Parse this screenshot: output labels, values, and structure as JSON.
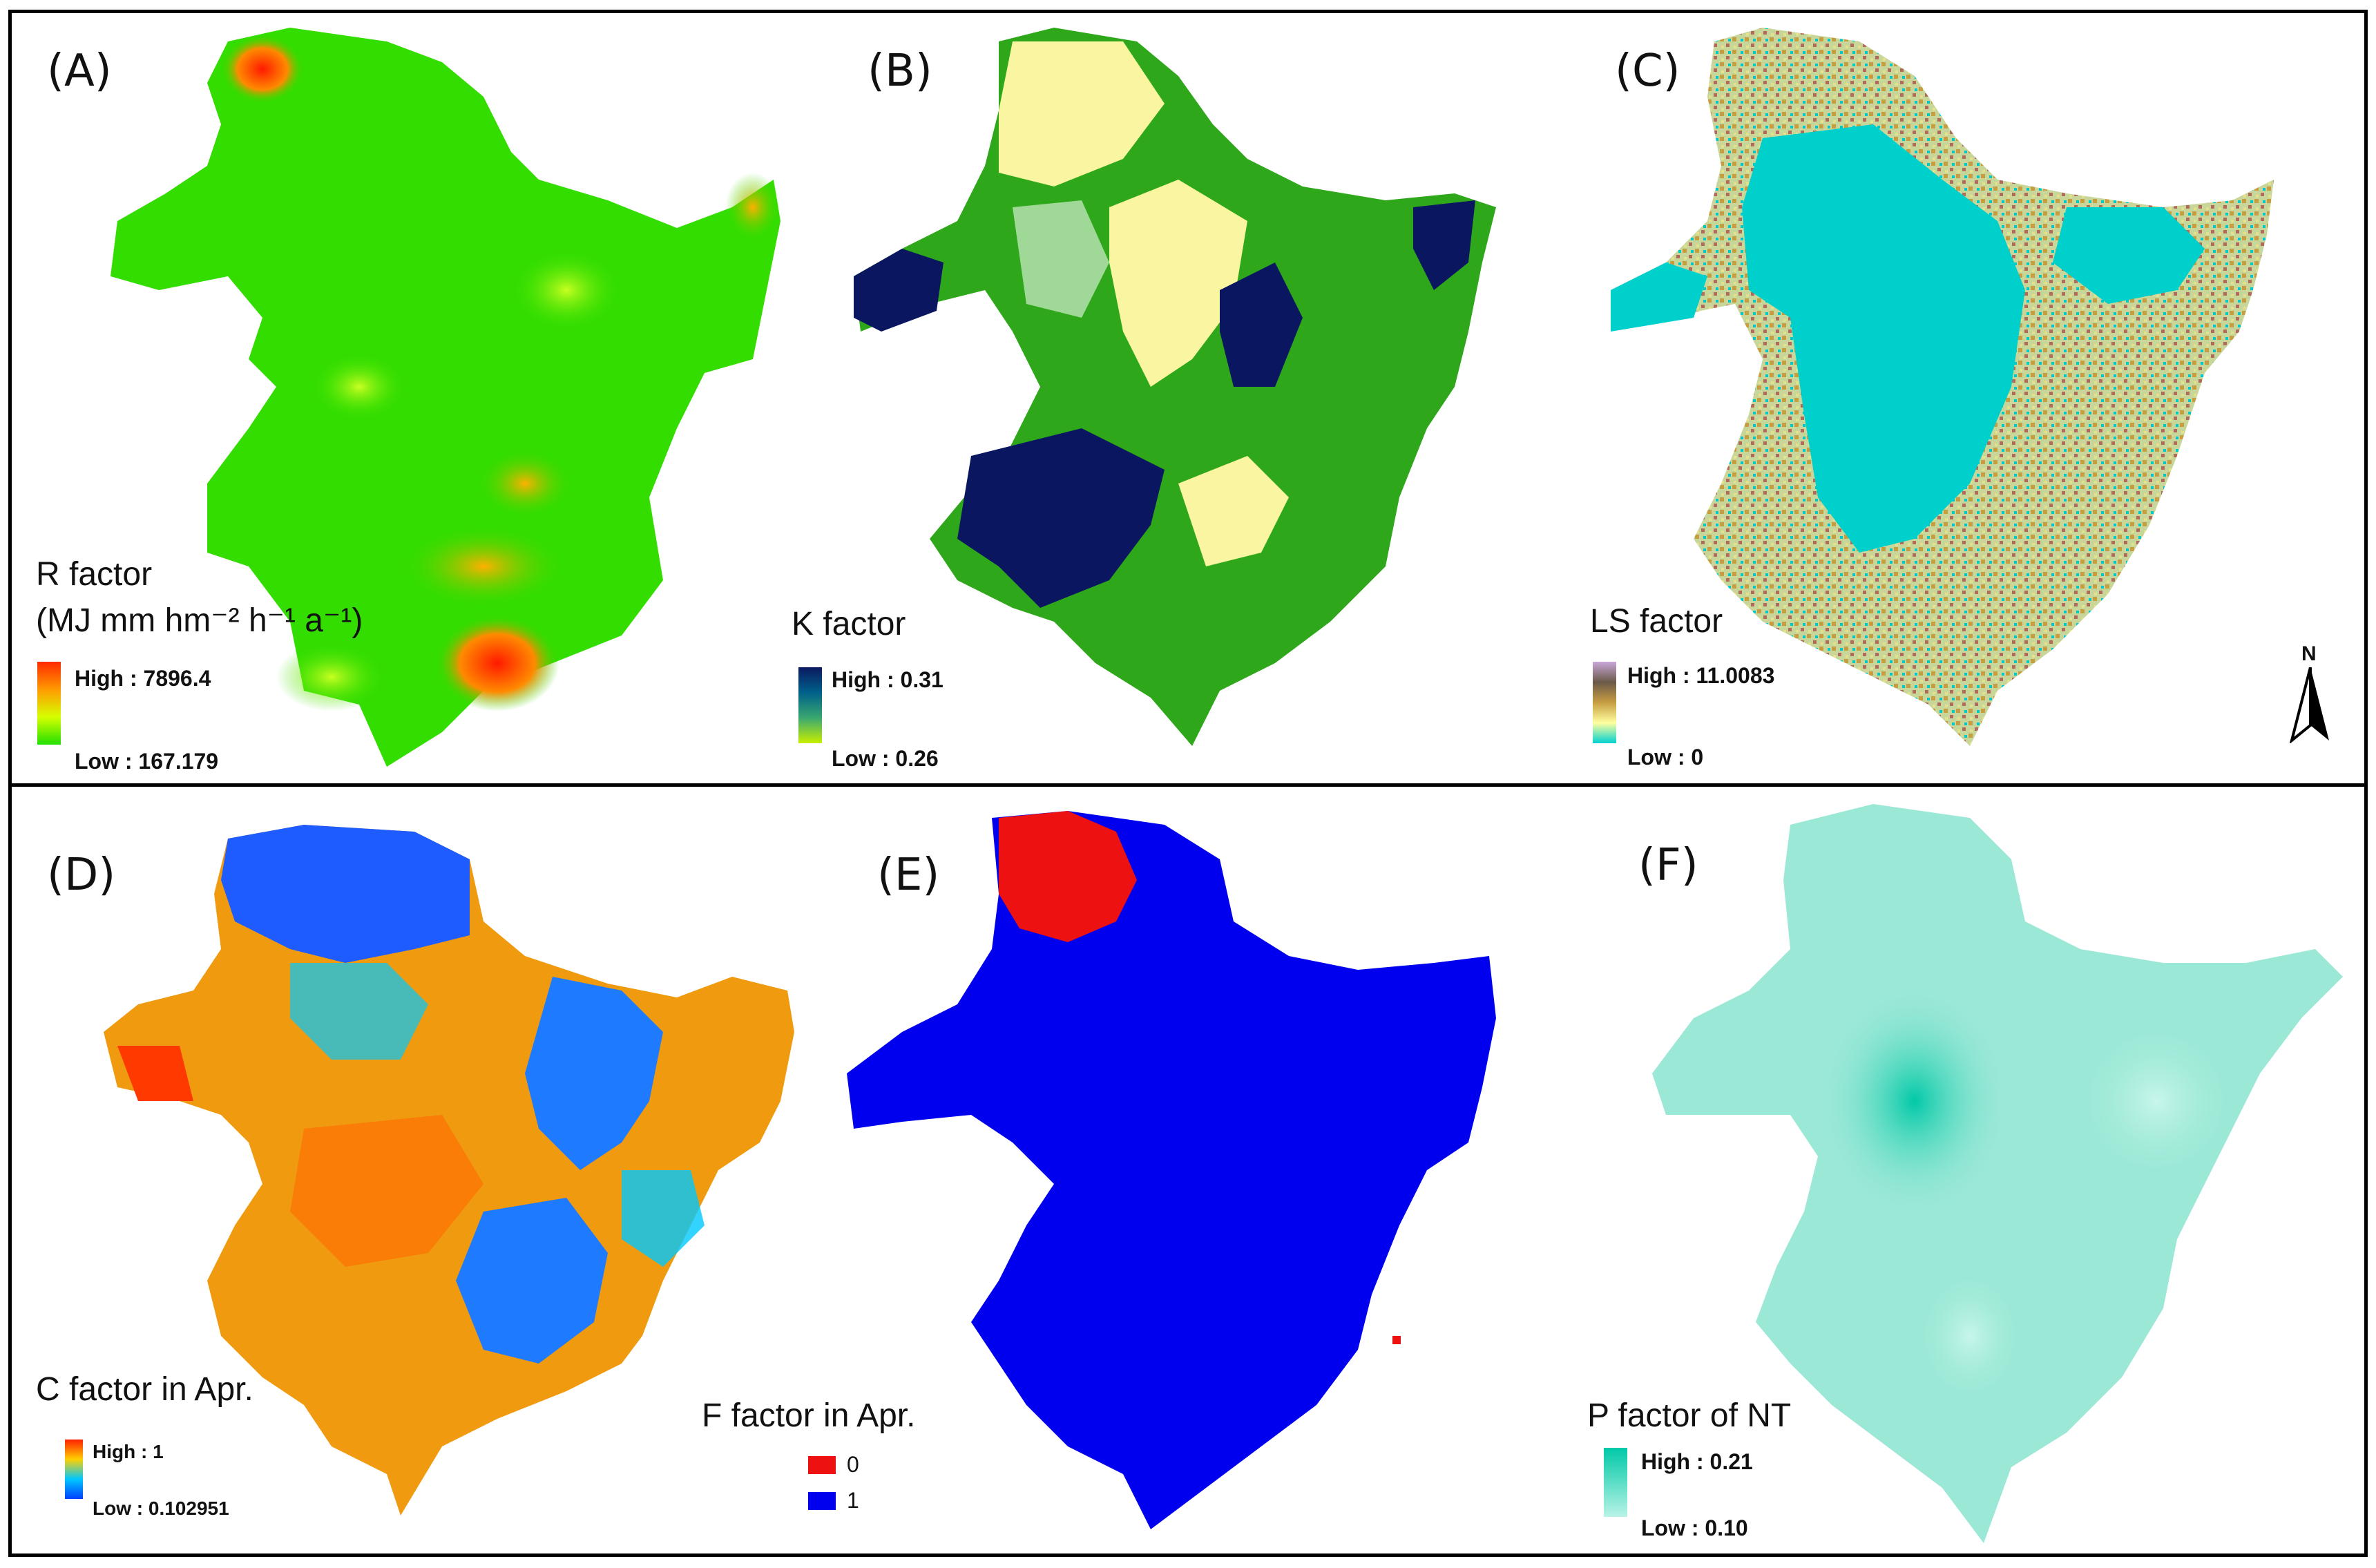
{
  "panels": [
    {
      "label": "(A)",
      "title": "R factor",
      "units": "(MJ mm hm⁻² h⁻¹ a⁻¹)",
      "high": "High : 7896.4",
      "low": "Low : 167.179",
      "ramp": [
        "#ff2a00",
        "#ff9a00",
        "#d6ff00",
        "#22e000"
      ],
      "base": "#33dd00"
    },
    {
      "label": "(B)",
      "title": "K factor",
      "high": "High : 0.31",
      "low": "Low : 0.26",
      "ramp": [
        "#0b1a5e",
        "#00608a",
        "#3aa870",
        "#c8ef00"
      ],
      "base": "#2ea81a"
    },
    {
      "label": "(C)",
      "title": "LS factor",
      "high": "High : 11.0083",
      "low": "Low : 0",
      "ramp": [
        "#c9a7d9",
        "#6b5a4a",
        "#c79d42",
        "#ffff9f",
        "#00d2d2"
      ],
      "base": "#00d0cc"
    },
    {
      "label": "(D)",
      "title": "C factor in Apr.",
      "high": "High : 1",
      "low": "Low : 0.102951",
      "ramp": [
        "#ff2000",
        "#ffd000",
        "#00c8ff",
        "#0040ff"
      ],
      "base": "#f09a10"
    },
    {
      "label": "(E)",
      "title": "F factor in Apr.",
      "legend": [
        {
          "text": "0",
          "color": "#ee1111"
        },
        {
          "text": "1",
          "color": "#0000ee"
        }
      ],
      "base": "#0000ee"
    },
    {
      "label": "(F)",
      "title": "P factor of NT",
      "high": "High : 0.21",
      "low": "Low : 0.10",
      "ramp": [
        "#00c9a7",
        "#b8f3e6"
      ],
      "base": "#9be8d6"
    }
  ],
  "north_label": "N"
}
